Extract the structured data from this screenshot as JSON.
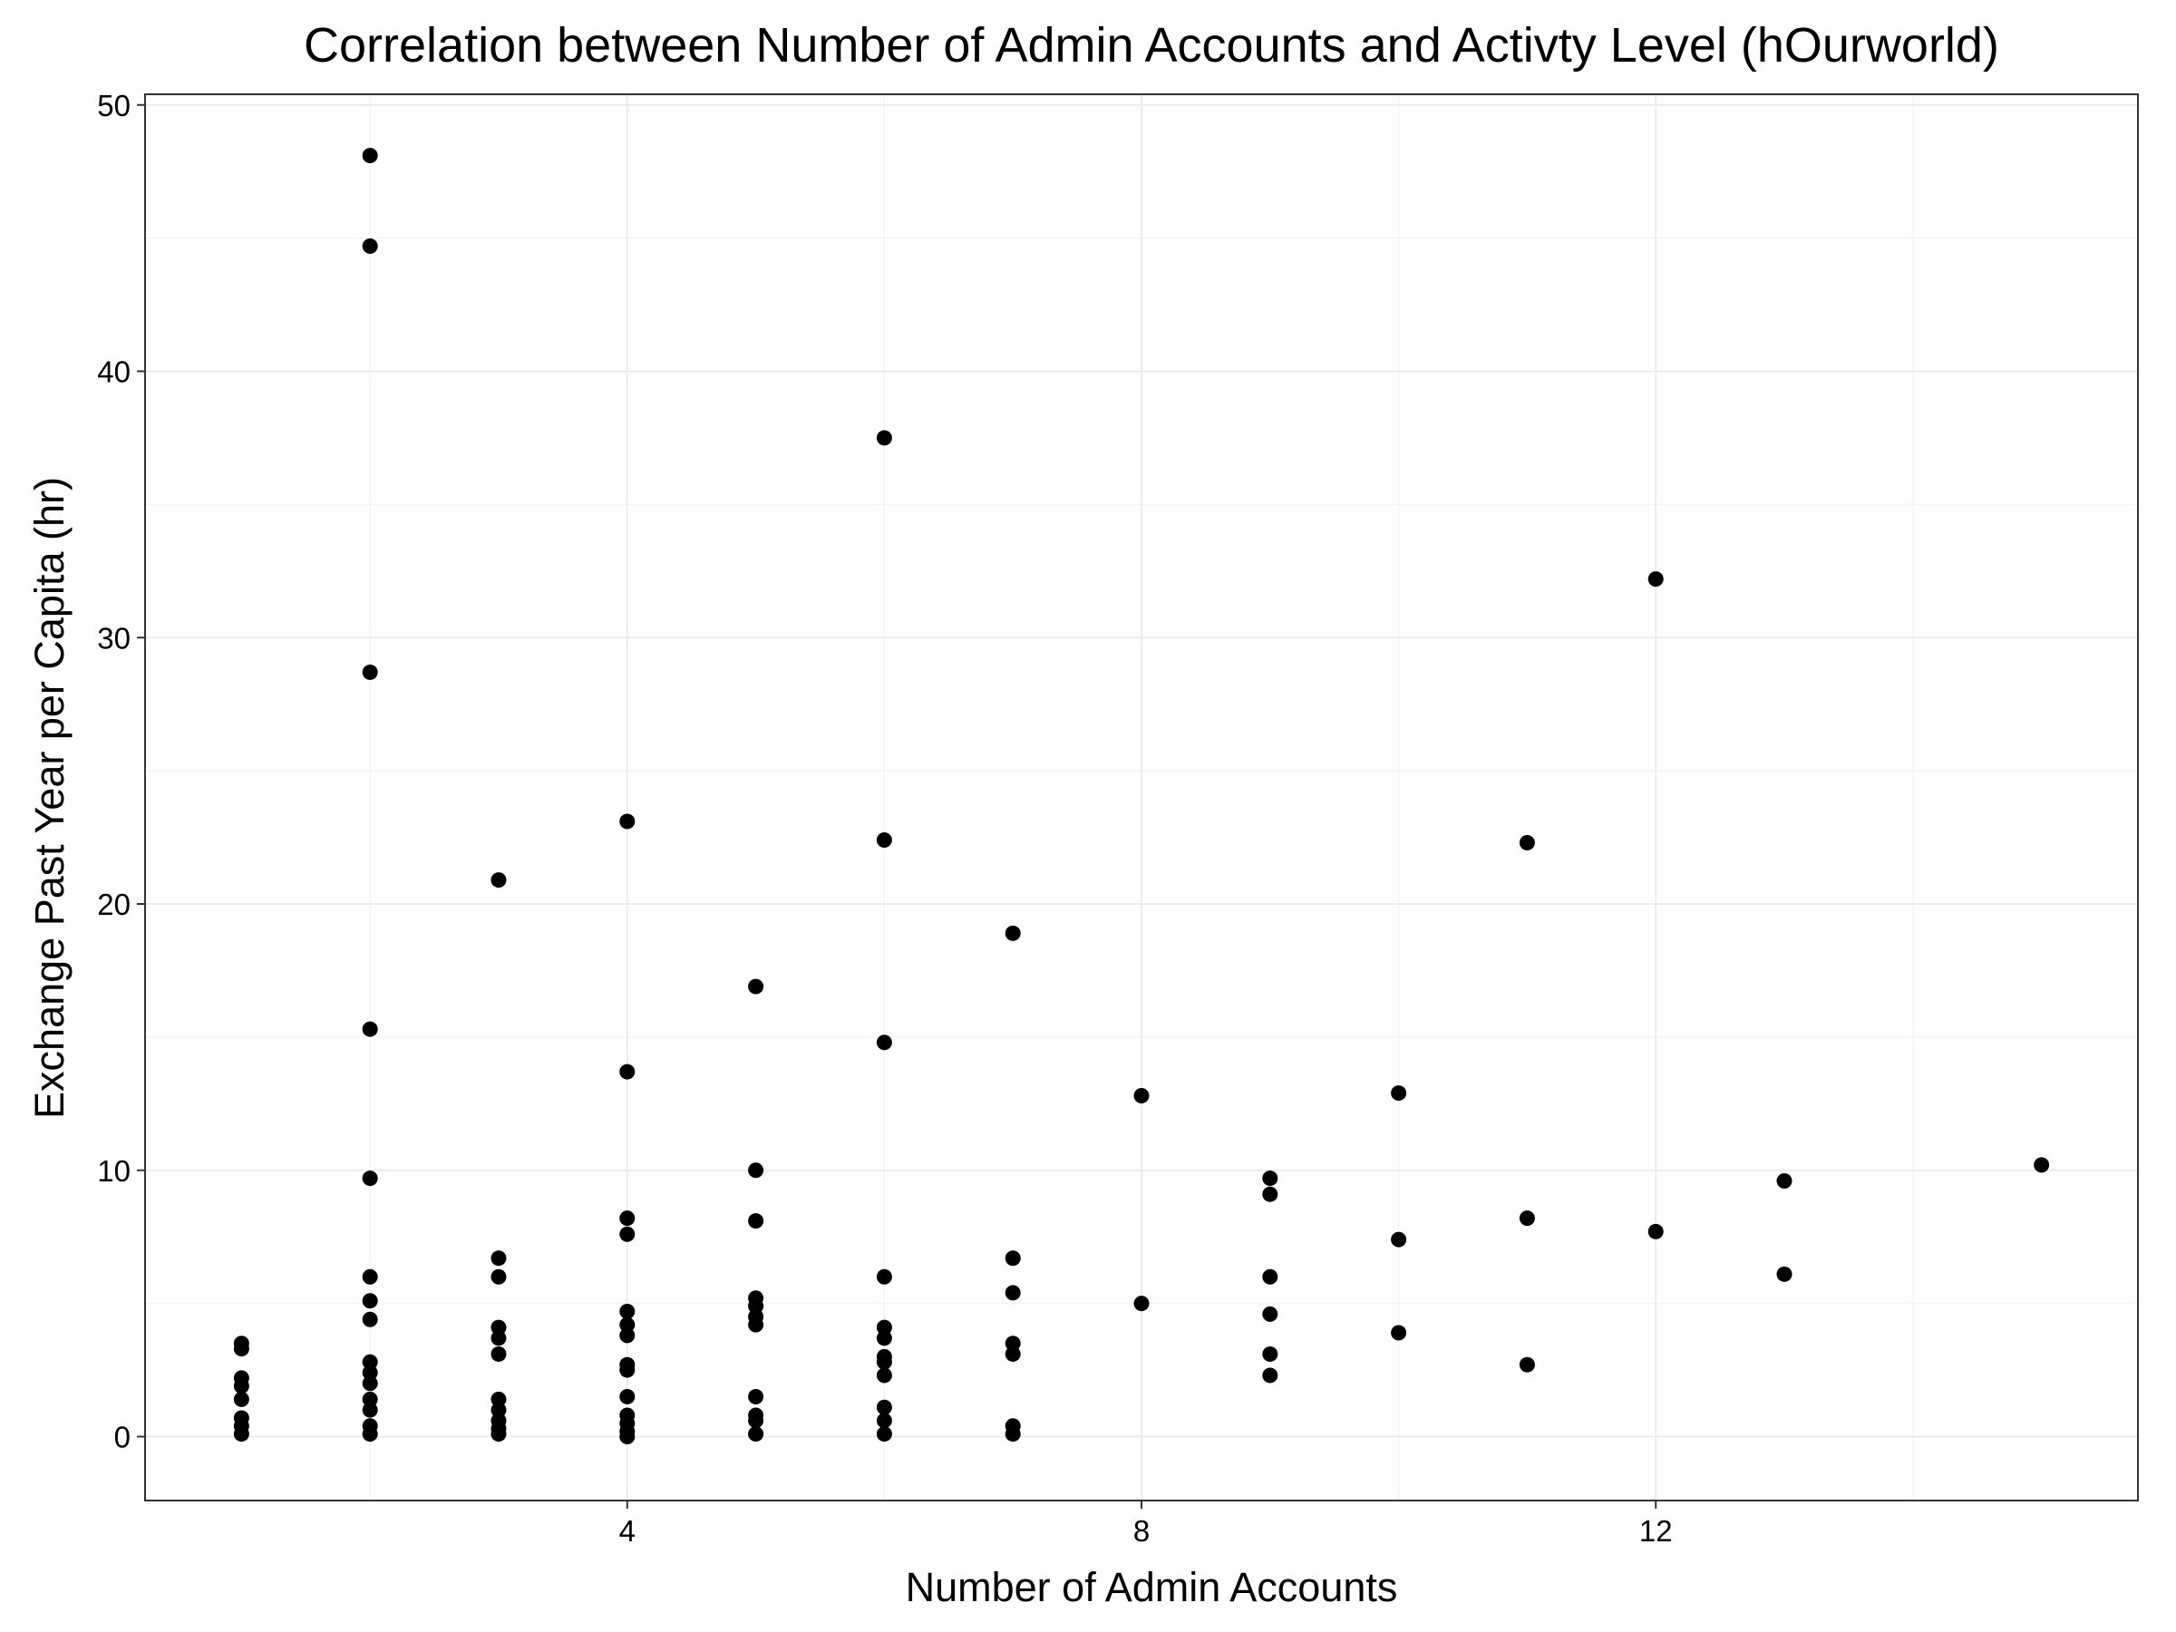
{
  "chart_data": {
    "type": "scatter",
    "title": "Correlation between Number of Admin Accounts and Activty Level (hOurworld)",
    "xlabel": "Number of Admin Accounts",
    "ylabel": "Exchange Past Year per Capita (hr)",
    "xlim": [
      0.25,
      15.75
    ],
    "ylim": [
      -2.4,
      50.4
    ],
    "x_ticks": [
      4,
      8,
      12
    ],
    "y_ticks": [
      0,
      10,
      20,
      30,
      40,
      50
    ],
    "grid": true,
    "legend": "none",
    "point_color": "#000000",
    "points": [
      {
        "x": 1,
        "y": 3.5
      },
      {
        "x": 1,
        "y": 3.3
      },
      {
        "x": 1,
        "y": 2.2
      },
      {
        "x": 1,
        "y": 1.9
      },
      {
        "x": 1,
        "y": 1.4
      },
      {
        "x": 1,
        "y": 0.7
      },
      {
        "x": 1,
        "y": 0.4
      },
      {
        "x": 1,
        "y": 0.1
      },
      {
        "x": 2,
        "y": 48.1
      },
      {
        "x": 2,
        "y": 44.7
      },
      {
        "x": 2,
        "y": 28.7
      },
      {
        "x": 2,
        "y": 15.3
      },
      {
        "x": 2,
        "y": 9.7
      },
      {
        "x": 2,
        "y": 6.0
      },
      {
        "x": 2,
        "y": 5.1
      },
      {
        "x": 2,
        "y": 4.4
      },
      {
        "x": 2,
        "y": 2.8
      },
      {
        "x": 2,
        "y": 2.4
      },
      {
        "x": 2,
        "y": 2.0
      },
      {
        "x": 2,
        "y": 1.4
      },
      {
        "x": 2,
        "y": 1.0
      },
      {
        "x": 2,
        "y": 0.4
      },
      {
        "x": 2,
        "y": 0.1
      },
      {
        "x": 3,
        "y": 20.9
      },
      {
        "x": 3,
        "y": 6.7
      },
      {
        "x": 3,
        "y": 6.0
      },
      {
        "x": 3,
        "y": 4.1
      },
      {
        "x": 3,
        "y": 3.7
      },
      {
        "x": 3,
        "y": 3.1
      },
      {
        "x": 3,
        "y": 1.4
      },
      {
        "x": 3,
        "y": 1.0
      },
      {
        "x": 3,
        "y": 0.6
      },
      {
        "x": 3,
        "y": 0.3
      },
      {
        "x": 3,
        "y": 0.1
      },
      {
        "x": 4,
        "y": 23.1
      },
      {
        "x": 4,
        "y": 13.7
      },
      {
        "x": 4,
        "y": 8.2
      },
      {
        "x": 4,
        "y": 7.6
      },
      {
        "x": 4,
        "y": 4.7
      },
      {
        "x": 4,
        "y": 4.2
      },
      {
        "x": 4,
        "y": 3.8
      },
      {
        "x": 4,
        "y": 2.7
      },
      {
        "x": 4,
        "y": 2.5
      },
      {
        "x": 4,
        "y": 1.5
      },
      {
        "x": 4,
        "y": 0.8
      },
      {
        "x": 4,
        "y": 0.5
      },
      {
        "x": 4,
        "y": 0.2
      },
      {
        "x": 4,
        "y": 0.0
      },
      {
        "x": 5,
        "y": 16.9
      },
      {
        "x": 5,
        "y": 10.0
      },
      {
        "x": 5,
        "y": 8.1
      },
      {
        "x": 5,
        "y": 5.2
      },
      {
        "x": 5,
        "y": 4.9
      },
      {
        "x": 5,
        "y": 4.5
      },
      {
        "x": 5,
        "y": 4.2
      },
      {
        "x": 5,
        "y": 1.5
      },
      {
        "x": 5,
        "y": 0.8
      },
      {
        "x": 5,
        "y": 0.6
      },
      {
        "x": 5,
        "y": 0.1
      },
      {
        "x": 6,
        "y": 37.5
      },
      {
        "x": 6,
        "y": 22.4
      },
      {
        "x": 6,
        "y": 14.8
      },
      {
        "x": 6,
        "y": 6.0
      },
      {
        "x": 6,
        "y": 4.1
      },
      {
        "x": 6,
        "y": 3.7
      },
      {
        "x": 6,
        "y": 3.0
      },
      {
        "x": 6,
        "y": 2.8
      },
      {
        "x": 6,
        "y": 2.3
      },
      {
        "x": 6,
        "y": 1.1
      },
      {
        "x": 6,
        "y": 0.6
      },
      {
        "x": 6,
        "y": 0.1
      },
      {
        "x": 7,
        "y": 18.9
      },
      {
        "x": 7,
        "y": 6.7
      },
      {
        "x": 7,
        "y": 5.4
      },
      {
        "x": 7,
        "y": 3.5
      },
      {
        "x": 7,
        "y": 3.1
      },
      {
        "x": 7,
        "y": 0.4
      },
      {
        "x": 7,
        "y": 0.1
      },
      {
        "x": 8,
        "y": 12.8
      },
      {
        "x": 8,
        "y": 5.0
      },
      {
        "x": 9,
        "y": 9.7
      },
      {
        "x": 9,
        "y": 9.1
      },
      {
        "x": 9,
        "y": 6.0
      },
      {
        "x": 9,
        "y": 4.6
      },
      {
        "x": 9,
        "y": 3.1
      },
      {
        "x": 9,
        "y": 2.3
      },
      {
        "x": 10,
        "y": 12.9
      },
      {
        "x": 10,
        "y": 7.4
      },
      {
        "x": 10,
        "y": 3.9
      },
      {
        "x": 11,
        "y": 22.3
      },
      {
        "x": 11,
        "y": 8.2
      },
      {
        "x": 11,
        "y": 2.7
      },
      {
        "x": 12,
        "y": 32.2
      },
      {
        "x": 12,
        "y": 7.7
      },
      {
        "x": 13,
        "y": 9.6
      },
      {
        "x": 13,
        "y": 6.1
      },
      {
        "x": 15,
        "y": 10.2
      }
    ]
  }
}
